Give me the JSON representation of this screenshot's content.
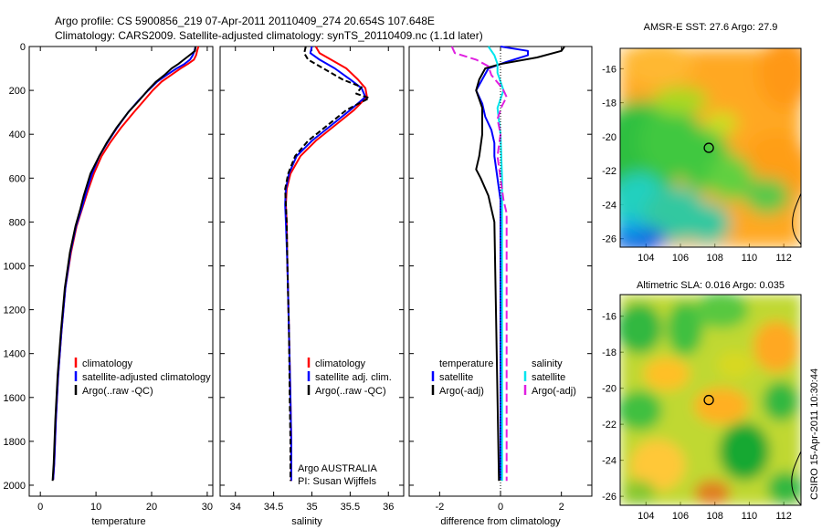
{
  "header": {
    "line1": "Argo profile: CS 5900856_219 07-Apr-2011 20110409_274 20.654S 107.648E",
    "line2": "Climatology: CARS2009. Satellite-adjusted climatology: synTS_20110409.nc (1.1d later)"
  },
  "side_stamp": "CSIRO 15-Apr-2011 10:30:44",
  "colors": {
    "climatology": "#ff0000",
    "satellite": "#0000ff",
    "argo": "#000000",
    "temp_satellite_diff": "#0000ff",
    "sal_satellite_diff": "#00e5ee",
    "sal_argo_diff": "#e020e0"
  },
  "chart_data": [
    {
      "type": "line",
      "panel": "temperature",
      "xlabel": "temperature",
      "ylabel": "",
      "xlim": [
        -2,
        31
      ],
      "ylim": [
        2050,
        0
      ],
      "xticks": [
        0,
        10,
        20,
        30
      ],
      "yticks": [
        0,
        200,
        400,
        600,
        800,
        1000,
        1200,
        1400,
        1600,
        1800,
        2000
      ],
      "legend": {
        "placement": "lower-right",
        "entries": [
          "climatology",
          "satellite-adjusted climatology",
          "Argo(..raw -QC)"
        ]
      },
      "series": [
        {
          "name": "climatology",
          "color_key": "climatology",
          "points": [
            [
              28.4,
              0
            ],
            [
              28.2,
              20
            ],
            [
              28.0,
              40
            ],
            [
              27.6,
              60
            ],
            [
              26.5,
              80
            ],
            [
              25.2,
              100
            ],
            [
              23.5,
              130
            ],
            [
              21.8,
              160
            ],
            [
              20.2,
              200
            ],
            [
              18.5,
              250
            ],
            [
              16.8,
              300
            ],
            [
              14.5,
              370
            ],
            [
              12.5,
              440
            ],
            [
              11.0,
              500
            ],
            [
              9.6,
              580
            ],
            [
              8.5,
              660
            ],
            [
              7.5,
              740
            ],
            [
              6.5,
              820
            ],
            [
              5.5,
              940
            ],
            [
              4.5,
              1100
            ],
            [
              3.8,
              1300
            ],
            [
              3.2,
              1500
            ],
            [
              2.8,
              1700
            ],
            [
              2.5,
              1900
            ],
            [
              2.3,
              1975
            ]
          ]
        },
        {
          "name": "satellite-adjusted climatology",
          "color_key": "satellite",
          "points": [
            [
              27.9,
              0
            ],
            [
              27.7,
              20
            ],
            [
              27.4,
              40
            ],
            [
              26.9,
              60
            ],
            [
              25.9,
              80
            ],
            [
              24.5,
              100
            ],
            [
              22.7,
              130
            ],
            [
              21.0,
              160
            ],
            [
              19.4,
              200
            ],
            [
              17.5,
              250
            ],
            [
              15.8,
              300
            ],
            [
              13.8,
              370
            ],
            [
              12.0,
              440
            ],
            [
              10.6,
              500
            ],
            [
              9.3,
              580
            ],
            [
              8.3,
              660
            ],
            [
              7.4,
              740
            ],
            [
              6.4,
              820
            ],
            [
              5.4,
              940
            ],
            [
              4.5,
              1100
            ],
            [
              3.8,
              1300
            ],
            [
              3.2,
              1500
            ],
            [
              2.8,
              1700
            ],
            [
              2.5,
              1900
            ],
            [
              2.3,
              1975
            ]
          ]
        },
        {
          "name": "Argo(..raw -QC)",
          "color_key": "argo",
          "points": [
            [
              27.9,
              0
            ],
            [
              27.8,
              20
            ],
            [
              26.8,
              40
            ],
            [
              25.8,
              60
            ],
            [
              24.8,
              80
            ],
            [
              23.6,
              100
            ],
            [
              22.3,
              130
            ],
            [
              20.8,
              160
            ],
            [
              19.3,
              200
            ],
            [
              17.6,
              250
            ],
            [
              15.8,
              300
            ],
            [
              13.7,
              370
            ],
            [
              11.9,
              440
            ],
            [
              10.6,
              500
            ],
            [
              9.0,
              580
            ],
            [
              7.8,
              680
            ],
            [
              7.2,
              740
            ],
            [
              6.3,
              820
            ],
            [
              5.3,
              940
            ],
            [
              4.4,
              1100
            ],
            [
              3.7,
              1300
            ],
            [
              3.1,
              1500
            ],
            [
              2.7,
              1700
            ],
            [
              2.4,
              1900
            ],
            [
              2.2,
              1980
            ]
          ]
        }
      ]
    },
    {
      "type": "line",
      "panel": "salinity",
      "xlabel": "salinity",
      "ylabel": "",
      "xlim": [
        33.8,
        36.2
      ],
      "ylim": [
        2050,
        0
      ],
      "xticks": [
        34,
        34.5,
        35,
        35.5,
        36
      ],
      "legend": {
        "placement": "lower-right",
        "entries": [
          "climatology",
          "satellite adj. clim.",
          "Argo(..raw -QC)"
        ]
      },
      "annotation": [
        "Argo AUSTRALIA",
        "PI: Susan Wijffels"
      ],
      "series": [
        {
          "name": "climatology",
          "color_key": "climatology",
          "points": [
            [
              35.05,
              0
            ],
            [
              35.1,
              30
            ],
            [
              35.25,
              60
            ],
            [
              35.45,
              100
            ],
            [
              35.6,
              150
            ],
            [
              35.7,
              190
            ],
            [
              35.72,
              230
            ],
            [
              35.55,
              290
            ],
            [
              35.3,
              360
            ],
            [
              35.05,
              430
            ],
            [
              34.85,
              500
            ],
            [
              34.72,
              580
            ],
            [
              34.67,
              650
            ],
            [
              34.66,
              720
            ],
            [
              34.67,
              800
            ],
            [
              34.68,
              1000
            ],
            [
              34.7,
              1300
            ],
            [
              34.72,
              1600
            ],
            [
              34.73,
              1800
            ],
            [
              34.73,
              1980
            ]
          ]
        },
        {
          "name": "satellite adj. clim.",
          "color_key": "satellite",
          "points": [
            [
              35.0,
              0
            ],
            [
              34.98,
              30
            ],
            [
              35.1,
              60
            ],
            [
              35.3,
              100
            ],
            [
              35.5,
              150
            ],
            [
              35.65,
              190
            ],
            [
              35.7,
              230
            ],
            [
              35.5,
              290
            ],
            [
              35.25,
              360
            ],
            [
              35.0,
              430
            ],
            [
              34.8,
              500
            ],
            [
              34.7,
              580
            ],
            [
              34.66,
              650
            ],
            [
              34.65,
              720
            ],
            [
              34.66,
              800
            ],
            [
              34.68,
              1000
            ],
            [
              34.7,
              1300
            ],
            [
              34.72,
              1600
            ],
            [
              34.73,
              1800
            ],
            [
              34.73,
              1980
            ]
          ]
        },
        {
          "name": "Argo(..raw -QC)",
          "color_key": "argo",
          "points": [
            [
              34.92,
              0
            ],
            [
              34.9,
              30
            ],
            [
              34.95,
              60
            ],
            [
              35.15,
              100
            ],
            [
              35.4,
              150
            ],
            [
              35.65,
              185
            ],
            [
              35.58,
              215
            ],
            [
              35.75,
              235
            ],
            [
              35.45,
              290
            ],
            [
              35.2,
              360
            ],
            [
              34.95,
              430
            ],
            [
              34.78,
              500
            ],
            [
              34.69,
              580
            ],
            [
              34.65,
              650
            ],
            [
              34.66,
              720
            ],
            [
              34.67,
              800
            ],
            [
              34.68,
              1000
            ],
            [
              34.7,
              1300
            ],
            [
              34.71,
              1600
            ],
            [
              34.72,
              1800
            ],
            [
              34.72,
              1980
            ]
          ]
        }
      ]
    },
    {
      "type": "line",
      "panel": "difference",
      "xlabel": "difference from climatology",
      "ylabel": "",
      "xlim": [
        -3,
        3
      ],
      "ylim": [
        2050,
        0
      ],
      "xticks": [
        -2,
        0,
        2
      ],
      "legend": {
        "placement": "lower-center",
        "groups": [
          {
            "title": "temperature",
            "entries": [
              "satellite",
              "Argo(-adj)"
            ]
          },
          {
            "title": "salinity",
            "entries": [
              "satellite",
              "Argo(-adj)"
            ]
          }
        ]
      },
      "series": [
        {
          "name": "temperature satellite",
          "color_key": "temp_satellite_diff",
          "points": [
            [
              0.0,
              0
            ],
            [
              0.9,
              20
            ],
            [
              0.9,
              40
            ],
            [
              0.2,
              70
            ],
            [
              -0.4,
              100
            ],
            [
              -0.6,
              150
            ],
            [
              -0.8,
              200
            ],
            [
              -0.6,
              260
            ],
            [
              -0.5,
              320
            ],
            [
              -0.3,
              380
            ],
            [
              -0.2,
              440
            ],
            [
              -0.2,
              500
            ],
            [
              0.0,
              700
            ],
            [
              0.0,
              1000
            ],
            [
              0.0,
              1500
            ],
            [
              0.0,
              1975
            ]
          ]
        },
        {
          "name": "temperature Argo(-adj)",
          "color_key": "argo",
          "points": [
            [
              2.1,
              0
            ],
            [
              2.0,
              20
            ],
            [
              1.2,
              50
            ],
            [
              0.0,
              80
            ],
            [
              -0.5,
              100
            ],
            [
              -0.7,
              150
            ],
            [
              -0.8,
              200
            ],
            [
              -0.6,
              280
            ],
            [
              -0.6,
              400
            ],
            [
              -0.7,
              500
            ],
            [
              -0.8,
              560
            ],
            [
              -0.65,
              600
            ],
            [
              -0.4,
              680
            ],
            [
              -0.3,
              740
            ],
            [
              -0.2,
              800
            ],
            [
              -0.15,
              1200
            ],
            [
              -0.1,
              1600
            ],
            [
              -0.05,
              1980
            ]
          ]
        },
        {
          "name": "salinity satellite",
          "color_key": "sal_satellite_diff",
          "points": [
            [
              -0.4,
              0
            ],
            [
              -0.2,
              40
            ],
            [
              -0.1,
              80
            ],
            [
              -0.1,
              120
            ],
            [
              0.1,
              200
            ],
            [
              -0.1,
              280
            ],
            [
              0.0,
              400
            ],
            [
              0.05,
              600
            ],
            [
              0.05,
              800
            ],
            [
              0.05,
              1000
            ],
            [
              0.05,
              1500
            ],
            [
              0.05,
              1980
            ]
          ]
        },
        {
          "name": "salinity Argo(-adj)",
          "color_key": "sal_argo_diff",
          "points": [
            [
              -1.6,
              0
            ],
            [
              -1.5,
              30
            ],
            [
              -0.8,
              60
            ],
            [
              -0.4,
              90
            ],
            [
              -0.3,
              130
            ],
            [
              0.0,
              180
            ],
            [
              0.1,
              200
            ],
            [
              0.2,
              230
            ],
            [
              0.05,
              270
            ],
            [
              -0.1,
              330
            ],
            [
              0.0,
              400
            ],
            [
              -0.1,
              500
            ],
            [
              0.0,
              600
            ],
            [
              0.1,
              700
            ],
            [
              0.2,
              760
            ],
            [
              0.2,
              1000
            ],
            [
              0.2,
              1500
            ],
            [
              0.2,
              1980
            ]
          ]
        }
      ]
    },
    {
      "type": "heatmap",
      "panel": "sst-map",
      "title": "AMSR-E SST: 27.6 Argo: 27.9",
      "xlim": [
        102.5,
        113
      ],
      "ylim": [
        -26.5,
        -14.8
      ],
      "xticks": [
        104,
        106,
        108,
        110,
        112
      ],
      "yticks": [
        -16,
        -18,
        -20,
        -22,
        -24,
        -26
      ],
      "marker": {
        "lon": 107.648,
        "lat": -20.654
      }
    },
    {
      "type": "heatmap",
      "panel": "sla-map",
      "title": "Altimetric SLA: 0.016 Argo: 0.035",
      "xlim": [
        102.5,
        113
      ],
      "ylim": [
        -26.5,
        -14.8
      ],
      "xticks": [
        104,
        106,
        108,
        110,
        112
      ],
      "yticks": [
        -16,
        -18,
        -20,
        -22,
        -24,
        -26
      ],
      "marker": {
        "lon": 107.648,
        "lat": -20.654
      }
    }
  ]
}
